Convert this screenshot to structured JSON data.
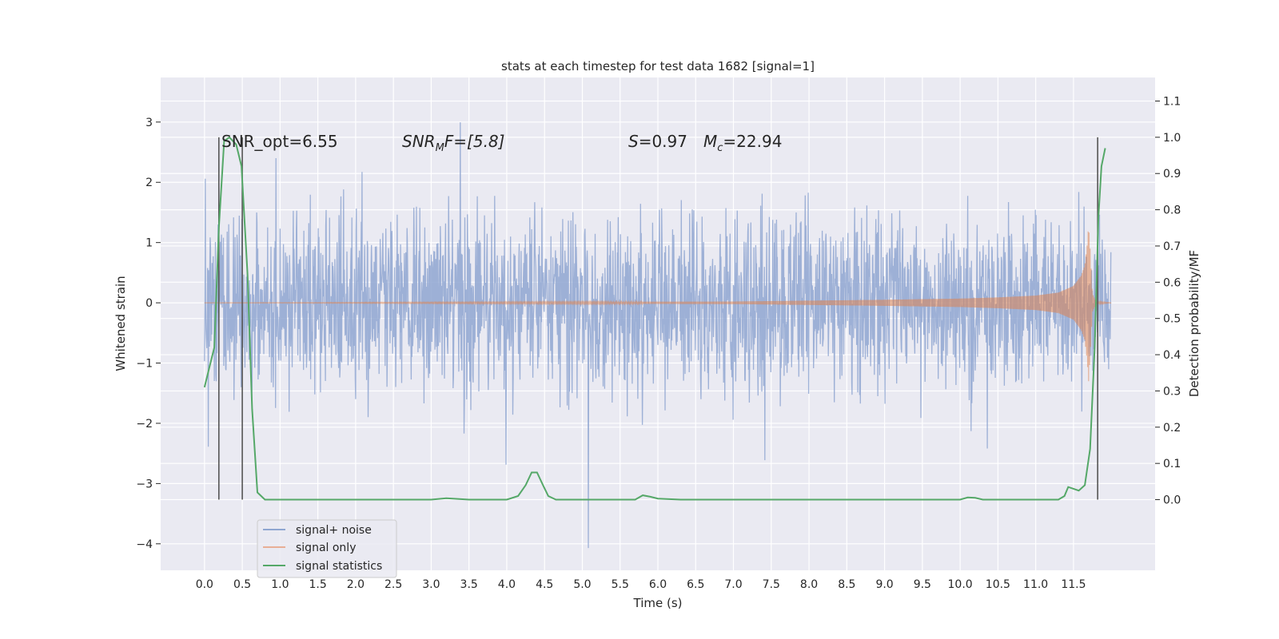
{
  "chart_data": {
    "type": "line",
    "title": "stats at each timestep for test data 1682 [signal=1]",
    "xlabel": "Time (s)",
    "ylabel_left": "Whitened strain",
    "ylabel_right": "Detection probability/MF",
    "xlim": [
      -0.58,
      12.58
    ],
    "ylim_left": [
      -4.44,
      3.74
    ],
    "ylim_right": [
      -0.195,
      1.165
    ],
    "grid": true,
    "x_ticks": [
      "0.0",
      "0.5",
      "1.0",
      "1.5",
      "2.0",
      "2.5",
      "3.0",
      "3.5",
      "4.0",
      "4.5",
      "5.0",
      "5.5",
      "6.0",
      "6.5",
      "7.0",
      "7.5",
      "8.0",
      "8.5",
      "9.0",
      "9.5",
      "10.0",
      "10.5",
      "11.0",
      "11.5"
    ],
    "y_ticks_left": [
      "3",
      "2",
      "1",
      "0",
      "−1",
      "−2",
      "−3",
      "−4"
    ],
    "y_ticks_right": [
      "1.1",
      "1.0",
      "0.9",
      "0.8",
      "0.7",
      "0.6",
      "0.5",
      "0.4",
      "0.3",
      "0.2",
      "0.1",
      "0.0"
    ],
    "annotations": {
      "snr_opt": "SNR_opt=6.55",
      "snr_mf_base": "SNR",
      "snr_mf_sub": "M",
      "snr_mf_rest": "F=[5.8]",
      "s_label": "S",
      "s_value": "=0.97",
      "mc_label": "M",
      "mc_sub": "c",
      "mc_value": "=22.94"
    },
    "vertical_markers_x": [
      0.19,
      0.5,
      11.82
    ],
    "legend_position": "lower-left",
    "series": [
      {
        "name": "signal+ noise",
        "color": "#8fa6d1",
        "description_values": {
          "t_start": 0.0,
          "t_end": 12.0,
          "typical_envelope": [
            -1.8,
            1.8
          ],
          "min": -4.07,
          "max": 3.38
        }
      },
      {
        "name": "signal only",
        "color": "#dd8452",
        "chirp_envelope": {
          "t": [
            0.0,
            7.0,
            9.0,
            10.0,
            10.5,
            11.0,
            11.3,
            11.5,
            11.6,
            11.65,
            11.68,
            11.7,
            11.72,
            11.75,
            11.8,
            12.0
          ],
          "amp": [
            0.0,
            0.02,
            0.05,
            0.07,
            0.09,
            0.12,
            0.17,
            0.28,
            0.45,
            0.62,
            0.95,
            1.3,
            0.9,
            0.15,
            0.02,
            0.0
          ]
        }
      },
      {
        "name": "signal statistics",
        "color": "#55a868",
        "x": [
          0.0,
          0.13,
          0.19,
          0.26,
          0.33,
          0.42,
          0.49,
          0.57,
          0.63,
          0.7,
          0.8,
          1.5,
          2.5,
          3.0,
          3.2,
          3.5,
          4.0,
          4.15,
          4.25,
          4.33,
          4.4,
          4.48,
          4.55,
          4.65,
          5.0,
          5.7,
          5.8,
          5.9,
          6.0,
          6.3,
          7.0,
          8.0,
          9.0,
          10.0,
          10.1,
          10.2,
          10.3,
          10.5,
          11.0,
          11.3,
          11.38,
          11.43,
          11.5,
          11.57,
          11.65,
          11.72,
          11.78,
          11.83,
          11.87,
          11.92
        ],
        "y": [
          0.31,
          0.42,
          0.75,
          0.99,
          1.0,
          0.98,
          0.92,
          0.62,
          0.25,
          0.02,
          0.0,
          0.0,
          0.0,
          0.0,
          0.004,
          0.0,
          0.0,
          0.01,
          0.04,
          0.075,
          0.075,
          0.04,
          0.01,
          0.0,
          0.0,
          0.0,
          0.012,
          0.008,
          0.003,
          0.0,
          0.0,
          0.0,
          0.0,
          0.0,
          0.006,
          0.005,
          0.0,
          0.0,
          0.0,
          0.0,
          0.01,
          0.035,
          0.03,
          0.025,
          0.04,
          0.14,
          0.42,
          0.78,
          0.92,
          0.97
        ]
      }
    ]
  }
}
